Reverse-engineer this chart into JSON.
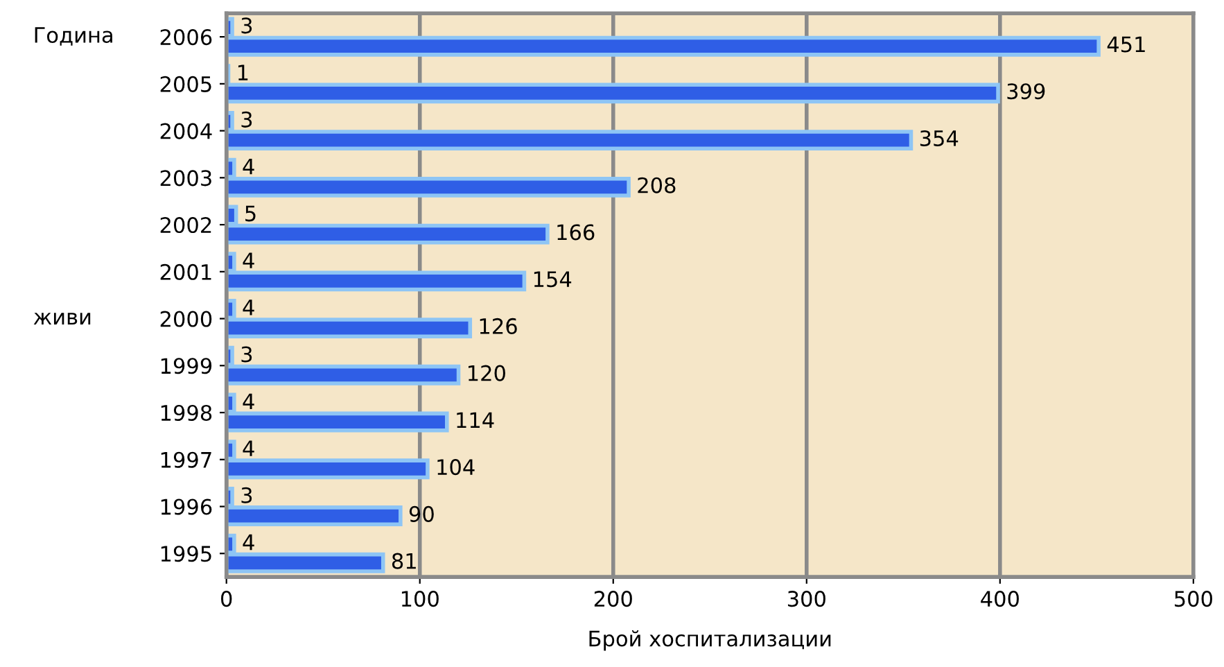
{
  "chart_data": {
    "type": "bar",
    "orientation": "horizontal",
    "xlabel": "Брой хоспитализации",
    "ylabel": "Година",
    "annotations": [
      "живи"
    ],
    "categories": [
      "2006",
      "2005",
      "2004",
      "2003",
      "2002",
      "2001",
      "2000",
      "1999",
      "1998",
      "1997",
      "1996",
      "1995"
    ],
    "series": [
      {
        "color": "#2f5ee6",
        "values": [
          3,
          1,
          3,
          4,
          5,
          4,
          4,
          3,
          4,
          4,
          3,
          4
        ]
      },
      {
        "color": "#2f5ee6",
        "values": [
          451,
          399,
          354,
          208,
          166,
          154,
          126,
          120,
          114,
          104,
          90,
          81
        ]
      }
    ],
    "xlim": [
      0,
      500
    ],
    "xticks": [
      0,
      100,
      200,
      300,
      400,
      500
    ],
    "grid": "x",
    "data_labels": true,
    "legend": false
  }
}
